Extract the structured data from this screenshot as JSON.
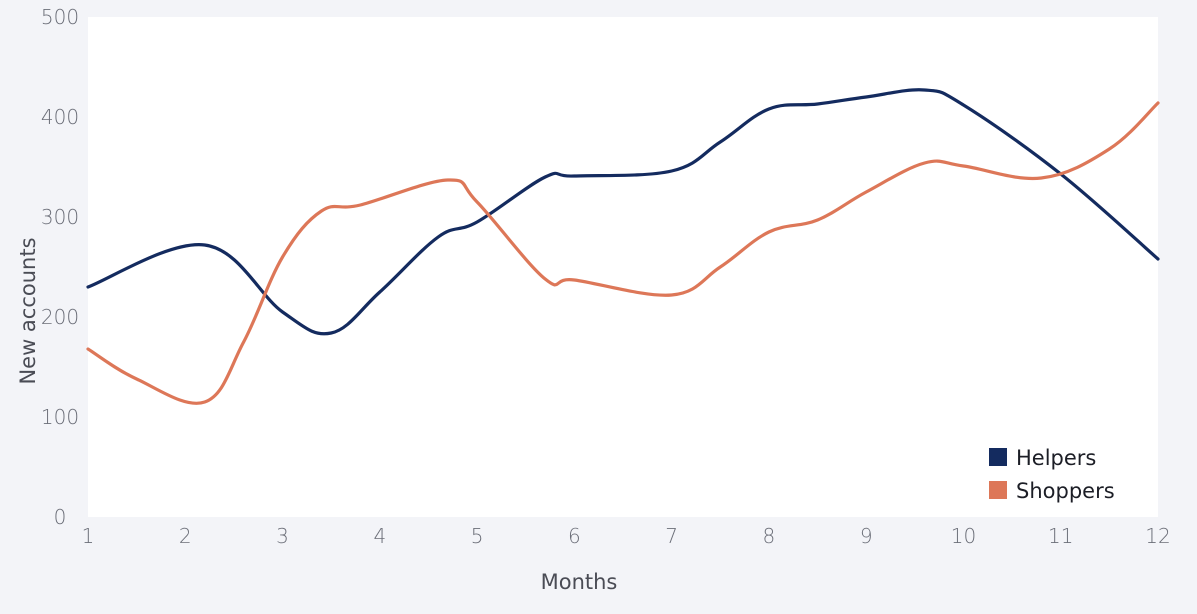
{
  "chart_data": {
    "type": "line",
    "title": "",
    "xlabel": "Months",
    "ylabel": "New accounts",
    "x": [
      1,
      2,
      3,
      4,
      5,
      6,
      7,
      8,
      9,
      10,
      11,
      12
    ],
    "xlim": [
      1,
      12
    ],
    "ylim": [
      0,
      500
    ],
    "yticks": [
      0,
      100,
      200,
      300,
      400,
      500
    ],
    "grid": false,
    "legend_position": "bottom-right",
    "series": [
      {
        "name": "Helpers",
        "color": "#142b5f",
        "points": [
          [
            1.0,
            230
          ],
          [
            2.2,
            272
          ],
          [
            3.0,
            205
          ],
          [
            3.5,
            184
          ],
          [
            4.0,
            225
          ],
          [
            4.6,
            280
          ],
          [
            5.0,
            295
          ],
          [
            5.7,
            340
          ],
          [
            6.0,
            341
          ],
          [
            7.0,
            346
          ],
          [
            7.5,
            375
          ],
          [
            8.0,
            408
          ],
          [
            8.5,
            413
          ],
          [
            9.0,
            420
          ],
          [
            9.6,
            427
          ],
          [
            10.0,
            412
          ],
          [
            11.0,
            343
          ],
          [
            12.0,
            258
          ]
        ]
      },
      {
        "name": "Shoppers",
        "color": "#dd7758",
        "points": [
          [
            1.0,
            168
          ],
          [
            1.5,
            138
          ],
          [
            2.2,
            115
          ],
          [
            2.6,
            175
          ],
          [
            3.0,
            260
          ],
          [
            3.4,
            306
          ],
          [
            3.8,
            312
          ],
          [
            4.7,
            337
          ],
          [
            5.0,
            315
          ],
          [
            5.7,
            238
          ],
          [
            6.0,
            237
          ],
          [
            7.0,
            222
          ],
          [
            7.5,
            250
          ],
          [
            8.0,
            285
          ],
          [
            8.5,
            297
          ],
          [
            9.0,
            325
          ],
          [
            9.6,
            354
          ],
          [
            10.0,
            351
          ],
          [
            10.8,
            339
          ],
          [
            11.5,
            368
          ],
          [
            12.0,
            414
          ]
        ]
      }
    ]
  }
}
